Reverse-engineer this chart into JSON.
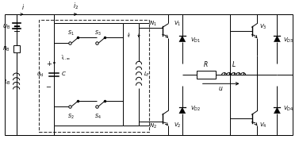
{
  "bg_color": "#ffffff",
  "line_color": "#000000",
  "figsize": [
    3.77,
    1.8
  ],
  "dpi": 100,
  "lw": 0.7
}
